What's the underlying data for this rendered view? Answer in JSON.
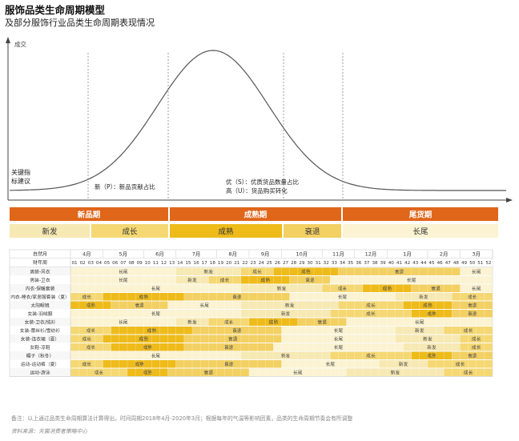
{
  "title": "服饰品类生命周期模型",
  "subtitle": "及部分服饰行业品类生命周期表现情况",
  "chart_data": {
    "type": "heatmap",
    "curve": {
      "ylabel": "成交",
      "annotations": {
        "kpi": [
          "关键指",
          "标建议"
        ],
        "new": "新（P）：新品贡献占比",
        "mature": [
          "优（S）：优质货品数量占比",
          "高（U）：货品购买转化"
        ]
      }
    },
    "phases": [
      "新品期",
      "成熟期",
      "尾货期"
    ],
    "stages": [
      "新发",
      "成长",
      "成熟",
      "衰退",
      "长尾"
    ],
    "stage_colors": {
      "新发": "#f7e9b3",
      "成长": "#f5d873",
      "成熟": "#eebb1a",
      "衰退": "#f3d062",
      "长尾": "#fbf3d1"
    },
    "row_labels": {
      "month": "自然月",
      "week": "财年周"
    },
    "months": [
      {
        "label": "4月",
        "weeks": 4
      },
      {
        "label": "5月",
        "weeks": 5
      },
      {
        "label": "6月",
        "weeks": 4
      },
      {
        "label": "7月",
        "weeks": 5
      },
      {
        "label": "8月",
        "weeks": 4
      },
      {
        "label": "9月",
        "weeks": 4
      },
      {
        "label": "10月",
        "weeks": 5
      },
      {
        "label": "11月",
        "weeks": 4
      },
      {
        "label": "12月",
        "weeks": 4
      },
      {
        "label": "1月",
        "weeks": 5
      },
      {
        "label": "2月",
        "weeks": 4
      },
      {
        "label": "3月",
        "weeks": 4
      }
    ],
    "weeks": [
      "01",
      "02",
      "03",
      "04",
      "05",
      "06",
      "07",
      "08",
      "09",
      "10",
      "11",
      "12",
      "13",
      "14",
      "15",
      "16",
      "17",
      "18",
      "19",
      "20",
      "21",
      "22",
      "23",
      "24",
      "25",
      "26",
      "27",
      "28",
      "29",
      "30",
      "31",
      "32",
      "33",
      "34",
      "35",
      "36",
      "37",
      "38",
      "39",
      "40",
      "41",
      "42",
      "43",
      "44",
      "45",
      "46",
      "47",
      "48",
      "49",
      "50",
      "51",
      "52"
    ],
    "categories": [
      {
        "name": "男装-风衣",
        "segments": [
          [
            "长尾",
            13
          ],
          [
            "新发",
            8
          ],
          [
            "成长",
            4
          ],
          [
            "成熟",
            8
          ],
          [
            "衰退",
            15
          ],
          [
            "长尾",
            4
          ]
        ]
      },
      {
        "name": "男装-卫衣",
        "segments": [
          [
            "长尾",
            13
          ],
          [
            "新发",
            4
          ],
          [
            "成长",
            4
          ],
          [
            "成熟",
            6
          ],
          [
            "衰退",
            5
          ],
          [
            "长尾",
            20
          ]
        ]
      },
      {
        "name": "内衣-保暖套装",
        "segments": [
          [
            "长尾",
            21
          ],
          [
            "新发",
            10
          ],
          [
            "成长",
            5
          ],
          [
            "成熟",
            6
          ],
          [
            "衰退",
            6
          ],
          [
            "长尾",
            4
          ]
        ]
      },
      {
        "name": "内衣-睡衣/家居服套装（夏）",
        "segments": [
          [
            "成长",
            4
          ],
          [
            "成熟",
            10
          ],
          [
            "衰退",
            13
          ],
          [
            "长尾",
            13
          ],
          [
            "新发",
            7
          ],
          [
            "成长",
            5
          ]
        ]
      },
      {
        "name": "太阳眼镜",
        "segments": [
          [
            "成熟",
            5
          ],
          [
            "衰退",
            7
          ],
          [
            "长尾",
            9
          ],
          [
            "新发",
            12
          ],
          [
            "成长",
            8
          ],
          [
            "成熟",
            6
          ],
          [
            "衰退",
            5
          ]
        ]
      },
      {
        "name": "女装-羽绒服",
        "segments": [
          [
            "长尾",
            21
          ],
          [
            "新发",
            11
          ],
          [
            "成长",
            10
          ],
          [
            "成熟",
            5
          ],
          [
            "衰退",
            5
          ]
        ]
      },
      {
        "name": "女装-卫衣/绒衫",
        "segments": [
          [
            "长尾",
            13
          ],
          [
            "新发",
            4
          ],
          [
            "成长",
            5
          ],
          [
            "成熟",
            6
          ],
          [
            "衰退",
            6
          ],
          [
            "长尾",
            18
          ]
        ]
      },
      {
        "name": "女装-蕾丝衫/雪纺衫",
        "segments": [
          [
            "成长",
            5
          ],
          [
            "成熟",
            10
          ],
          [
            "衰退",
            11
          ],
          [
            "长尾",
            14
          ],
          [
            "新发",
            6
          ],
          [
            "成长",
            6
          ]
        ]
      },
      {
        "name": "女装-连衣裙（夏）",
        "segments": [
          [
            "成长",
            4
          ],
          [
            "成熟",
            10
          ],
          [
            "衰退",
            12
          ],
          [
            "长尾",
            14
          ],
          [
            "新发",
            8
          ],
          [
            "成长",
            4
          ]
        ]
      },
      {
        "name": "女鞋-凉鞋",
        "segments": [
          [
            "成长",
            5
          ],
          [
            "成熟",
            9
          ],
          [
            "衰退",
            11
          ],
          [
            "长尾",
            16
          ],
          [
            "新发",
            7
          ],
          [
            "成长",
            4
          ]
        ]
      },
      {
        "name": "帽子（秋冬）",
        "segments": [
          [
            "长尾",
            21
          ],
          [
            "新发",
            11
          ],
          [
            "成长",
            10
          ],
          [
            "成熟",
            5
          ],
          [
            "衰退",
            5
          ]
        ]
      },
      {
        "name": "运动-运动裤（夏）",
        "segments": [
          [
            "成长",
            4
          ],
          [
            "成熟",
            9
          ],
          [
            "衰退",
            13
          ],
          [
            "长尾",
            12
          ],
          [
            "新发",
            6
          ],
          [
            "成长",
            8
          ]
        ]
      },
      {
        "name": "运动-游泳",
        "segments": [
          [
            "成长",
            7
          ],
          [
            "成熟",
            5
          ],
          [
            "衰退",
            10
          ],
          [
            "长尾",
            12
          ],
          [
            "新发",
            12
          ],
          [
            "成长",
            6
          ]
        ]
      }
    ]
  },
  "note": "备注：以上通过品类生命周期算法计算得出，时间周期2018年4月-2020年3月；根据每年的气温等影响因素，品类的生命周期节奏会有所调整",
  "source": "资料来源：天猫消费者策略中心"
}
